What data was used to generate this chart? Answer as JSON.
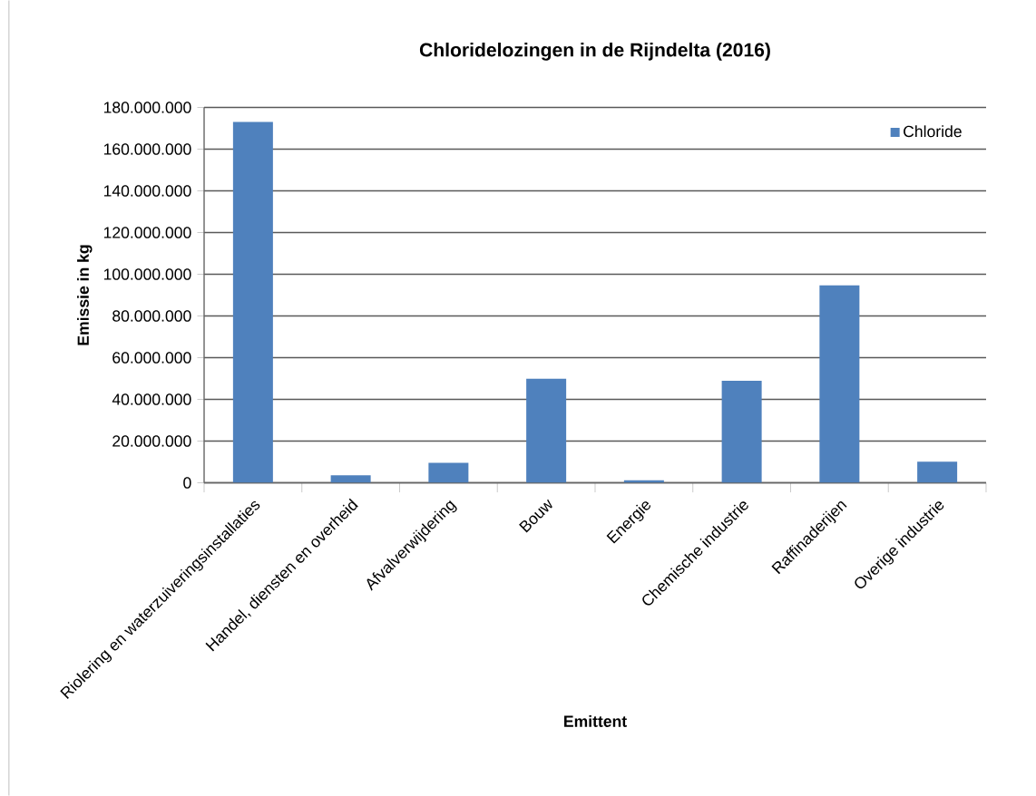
{
  "chart_data": {
    "type": "bar",
    "title": "Chloridelozingen in de Rijndelta (2016)",
    "xlabel": "Emittent",
    "ylabel": "Emissie in kg",
    "categories": [
      "Riolering en waterzuiveringsinstallaties",
      "Handel, diensten en overheid",
      "Afvalverwijdering",
      "Bouw",
      "Energie",
      "Chemische industrie",
      "Raffinaderijen",
      "Overige industrie"
    ],
    "series": [
      {
        "name": "Chloride",
        "color": "#4f81bd",
        "values": [
          173000000,
          3600000,
          9600000,
          49900000,
          1200000,
          48900000,
          94700000,
          10100000
        ]
      }
    ],
    "ylim": [
      0,
      180000000
    ],
    "yticks": [
      {
        "value": 0,
        "label": "0"
      },
      {
        "value": 20000000,
        "label": "20.000.000"
      },
      {
        "value": 40000000,
        "label": "40.000.000"
      },
      {
        "value": 60000000,
        "label": "60.000.000"
      },
      {
        "value": 80000000,
        "label": "80.000.000"
      },
      {
        "value": 100000000,
        "label": "100.000.000"
      },
      {
        "value": 120000000,
        "label": "120.000.000"
      },
      {
        "value": 140000000,
        "label": "140.000.000"
      },
      {
        "value": 160000000,
        "label": "160.000.000"
      },
      {
        "value": 180000000,
        "label": "180.000.000"
      }
    ],
    "grid": "y",
    "legend": "top right"
  }
}
